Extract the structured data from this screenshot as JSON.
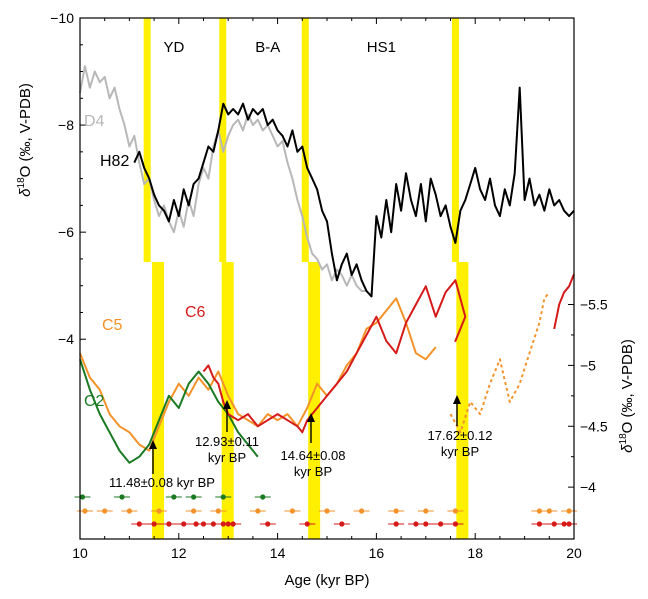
{
  "chart_data": {
    "type": "line",
    "xlabel": "Age (kyr BP)",
    "xlim": [
      10,
      20
    ],
    "x_ticks": [
      "10",
      "12",
      "14",
      "16",
      "18",
      "20"
    ],
    "top_panel": {
      "ylabel_delta": "δ",
      "ylabel_sup": "18",
      "ylabel_rest": "O (‰, V-PDB)",
      "ylim": [
        -10,
        -3.5
      ],
      "y_ticks": [
        "−10",
        "−8",
        "−6",
        "−4"
      ],
      "series": [
        {
          "name": "D4",
          "color": "#b8b8b8",
          "x": [
            10.0,
            10.1,
            10.2,
            10.3,
            10.4,
            10.5,
            10.6,
            10.7,
            10.8,
            10.9,
            11.0,
            11.1,
            11.2,
            11.3,
            11.4,
            11.5,
            11.6,
            11.7,
            11.8,
            11.9,
            12.0,
            12.1,
            12.2,
            12.3,
            12.4,
            12.5,
            12.6,
            12.7,
            12.8,
            12.9,
            13.0,
            13.1,
            13.2,
            13.3,
            13.4,
            13.5,
            13.6,
            13.7,
            13.8,
            13.9,
            14.0,
            14.1,
            14.2,
            14.3,
            14.4,
            14.5,
            14.6,
            14.7,
            14.8,
            14.9,
            15.0,
            15.1,
            15.2,
            15.3,
            15.4,
            15.5,
            15.6,
            15.7,
            15.8,
            15.9
          ],
          "y": [
            -8.6,
            -9.1,
            -8.7,
            -9.0,
            -8.8,
            -8.9,
            -8.5,
            -8.7,
            -8.3,
            -8.0,
            -7.6,
            -7.8,
            -7.3,
            -6.9,
            -7.0,
            -6.6,
            -6.3,
            -6.5,
            -6.2,
            -6.0,
            -6.4,
            -6.1,
            -6.6,
            -6.3,
            -6.9,
            -7.2,
            -7.0,
            -7.6,
            -7.9,
            -7.5,
            -7.8,
            -8.0,
            -8.1,
            -7.9,
            -8.2,
            -8.0,
            -8.1,
            -7.9,
            -8.0,
            -7.8,
            -7.6,
            -7.7,
            -7.3,
            -7.0,
            -6.6,
            -6.3,
            -5.9,
            -5.6,
            -5.5,
            -5.3,
            -5.4,
            -5.1,
            -5.3,
            -5.2,
            -5.0,
            -5.2,
            -5.0,
            -4.9,
            -4.9,
            -4.8
          ]
        },
        {
          "name": "H82",
          "color": "#000000",
          "x": [
            11.1,
            11.2,
            11.3,
            11.4,
            11.5,
            11.6,
            11.7,
            11.8,
            11.9,
            12.0,
            12.1,
            12.2,
            12.3,
            12.4,
            12.5,
            12.6,
            12.7,
            12.8,
            12.9,
            13.0,
            13.1,
            13.2,
            13.3,
            13.4,
            13.5,
            13.6,
            13.7,
            13.8,
            13.9,
            14.0,
            14.1,
            14.2,
            14.3,
            14.4,
            14.5,
            14.6,
            14.7,
            14.8,
            14.9,
            15.0,
            15.1,
            15.2,
            15.3,
            15.4,
            15.5,
            15.6,
            15.7,
            15.8,
            15.9,
            16.0,
            16.1,
            16.2,
            16.3,
            16.4,
            16.5,
            16.6,
            16.7,
            16.8,
            16.9,
            17.0,
            17.1,
            17.2,
            17.3,
            17.4,
            17.5,
            17.6,
            17.7,
            17.8,
            17.9,
            18.0,
            18.1,
            18.2,
            18.3,
            18.4,
            18.5,
            18.6,
            18.7,
            18.8,
            18.9,
            19.0,
            19.1,
            19.2,
            19.3,
            19.4,
            19.5,
            19.6,
            19.7,
            19.8,
            19.9,
            20.0
          ],
          "y": [
            -7.3,
            -7.5,
            -7.2,
            -7.0,
            -6.7,
            -6.5,
            -6.4,
            -6.2,
            -6.6,
            -6.3,
            -6.8,
            -6.5,
            -6.9,
            -7.0,
            -7.3,
            -7.6,
            -7.5,
            -7.9,
            -8.4,
            -8.2,
            -8.3,
            -8.2,
            -8.4,
            -8.1,
            -8.3,
            -8.2,
            -8.3,
            -8.0,
            -8.1,
            -7.9,
            -7.8,
            -7.6,
            -7.9,
            -7.5,
            -7.6,
            -7.2,
            -7.0,
            -6.8,
            -6.4,
            -6.2,
            -5.6,
            -5.1,
            -5.4,
            -5.6,
            -5.2,
            -5.4,
            -5.1,
            -4.9,
            -4.8,
            -6.3,
            -5.9,
            -6.6,
            -6.0,
            -6.9,
            -6.4,
            -7.1,
            -6.6,
            -6.3,
            -6.9,
            -6.2,
            -7.0,
            -6.7,
            -6.3,
            -6.5,
            -6.1,
            -5.8,
            -6.4,
            -6.6,
            -6.9,
            -7.2,
            -6.8,
            -6.6,
            -7.0,
            -6.5,
            -6.3,
            -6.8,
            -6.5,
            -7.1,
            -8.7,
            -6.6,
            -7.0,
            -6.5,
            -6.7,
            -6.4,
            -6.8,
            -6.5,
            -6.6,
            -6.4,
            -6.3,
            -6.4
          ]
        }
      ]
    },
    "bottom_panel": {
      "ylabel_delta": "δ",
      "ylabel_sup": "18",
      "ylabel_rest": "O (‰, V-PDB)",
      "ylim": [
        -3.5,
        -5.8
      ],
      "y_ticks": [
        "−5.5",
        "−5",
        "−4.5",
        "−4"
      ],
      "series": [
        {
          "name": "C5",
          "color": "#f4922a",
          "x": [
            10.0,
            10.2,
            10.4,
            10.6,
            10.8,
            11.0,
            11.2,
            11.4,
            11.6,
            11.8,
            12.0,
            12.2,
            12.4,
            12.6,
            12.8,
            13.0,
            13.2,
            13.4,
            13.6,
            13.8,
            14.0,
            14.2,
            14.4,
            14.6,
            14.8,
            15.0,
            15.2,
            15.4,
            15.6,
            15.8,
            16.0,
            16.2,
            16.4,
            16.6,
            16.8,
            17.0,
            17.2
          ],
          "y": [
            -5.1,
            -4.9,
            -4.8,
            -4.6,
            -4.5,
            -4.45,
            -4.35,
            -4.3,
            -4.5,
            -4.7,
            -4.85,
            -4.75,
            -4.9,
            -4.8,
            -4.95,
            -4.75,
            -4.6,
            -4.55,
            -4.5,
            -4.6,
            -4.55,
            -4.6,
            -4.5,
            -4.65,
            -4.85,
            -4.75,
            -4.85,
            -5.0,
            -5.1,
            -5.3,
            -5.35,
            -5.45,
            -5.55,
            -5.35,
            -5.1,
            -5.05,
            -5.15
          ]
        },
        {
          "name": "",
          "color": "#f4922a",
          "dashed": true,
          "x": [
            17.5,
            17.7,
            17.9,
            18.1,
            18.3,
            18.5,
            18.7,
            18.9,
            19.1,
            19.3,
            19.4,
            19.5
          ],
          "y": [
            -4.6,
            -4.45,
            -4.7,
            -4.6,
            -4.85,
            -5.05,
            -4.7,
            -4.85,
            -5.1,
            -5.35,
            -5.55,
            -5.6
          ]
        },
        {
          "name": "C2",
          "color": "#1a7a22",
          "x": [
            10.0,
            10.2,
            10.4,
            10.6,
            10.8,
            11.0,
            11.2,
            11.4,
            11.6,
            11.8,
            12.0,
            12.2,
            12.4,
            12.6,
            12.8,
            13.0,
            13.2,
            13.4,
            13.6
          ],
          "y": [
            -5.05,
            -4.8,
            -4.6,
            -4.45,
            -4.3,
            -4.2,
            -4.25,
            -4.35,
            -4.55,
            -4.75,
            -4.65,
            -4.85,
            -4.95,
            -4.85,
            -4.7,
            -4.6,
            -4.45,
            -4.35,
            -4.25
          ]
        },
        {
          "name": "C6",
          "color": "#d61a1a",
          "x": [
            12.5,
            12.6,
            12.7,
            12.8,
            12.9,
            13.0,
            13.2,
            13.4,
            13.6,
            13.8,
            14.0,
            14.2,
            14.4,
            14.5,
            14.6,
            14.8,
            15.0,
            15.2,
            15.4,
            15.6,
            15.8,
            16.0,
            16.2,
            16.4,
            16.6,
            16.8,
            17.0,
            17.2,
            17.4,
            17.6,
            17.8,
            17.6,
            17.7
          ],
          "y": [
            -4.95,
            -5.0,
            -4.9,
            -4.85,
            -4.7,
            -4.6,
            -4.55,
            -4.6,
            -4.5,
            -4.55,
            -4.6,
            -4.55,
            -4.5,
            -4.45,
            -4.55,
            -4.65,
            -4.75,
            -4.85,
            -4.95,
            -5.1,
            -5.25,
            -5.4,
            -5.2,
            -5.1,
            -5.35,
            -5.5,
            -5.65,
            -5.4,
            -5.6,
            -5.7,
            -5.4,
            -5.2,
            -5.3
          ]
        },
        {
          "name": "",
          "color": "#d61a1a",
          "x": [
            19.6,
            19.7,
            19.8,
            19.9,
            20.0
          ],
          "y": [
            -5.3,
            -5.5,
            -5.6,
            -5.65,
            -5.75
          ]
        }
      ]
    },
    "period_labels": [
      {
        "text": "YD",
        "x": 11.9
      },
      {
        "text": "B-A",
        "x": 13.8
      },
      {
        "text": "HS1",
        "x": 16.1
      }
    ],
    "transitions": [
      {
        "x": 11.48,
        "label1": "11.48±0.08 kyr BP",
        "label2": ""
      },
      {
        "x": 12.93,
        "label1": "12.93±0.11",
        "label2": "kyr BP"
      },
      {
        "x": 14.64,
        "label1": "14.64±0.08",
        "label2": "kyr BP"
      },
      {
        "x": 17.62,
        "label1": "17.62±0.12",
        "label2": "kyr BP"
      }
    ],
    "age_points": {
      "green": [
        10.05,
        10.85,
        11.9,
        12.3,
        12.9,
        13.7
      ],
      "orange": [
        10.1,
        10.5,
        11.0,
        11.6,
        12.3,
        12.8,
        13.6,
        14.3,
        15.0,
        15.7,
        16.4,
        17.0,
        17.6,
        19.3,
        19.5,
        19.9
      ],
      "red": [
        11.2,
        11.5,
        11.8,
        12.1,
        12.35,
        12.5,
        12.7,
        12.9,
        13.0,
        13.1,
        13.8,
        14.6,
        15.3,
        16.4,
        16.8,
        17.0,
        17.3,
        17.6,
        19.3,
        19.6,
        19.8,
        19.9
      ]
    },
    "colors": {
      "band": "#ffef00",
      "D4": "#b8b8b8",
      "H82": "#000000",
      "C5": "#f4922a",
      "C2": "#1a7a22",
      "C6": "#d61a1a"
    }
  }
}
